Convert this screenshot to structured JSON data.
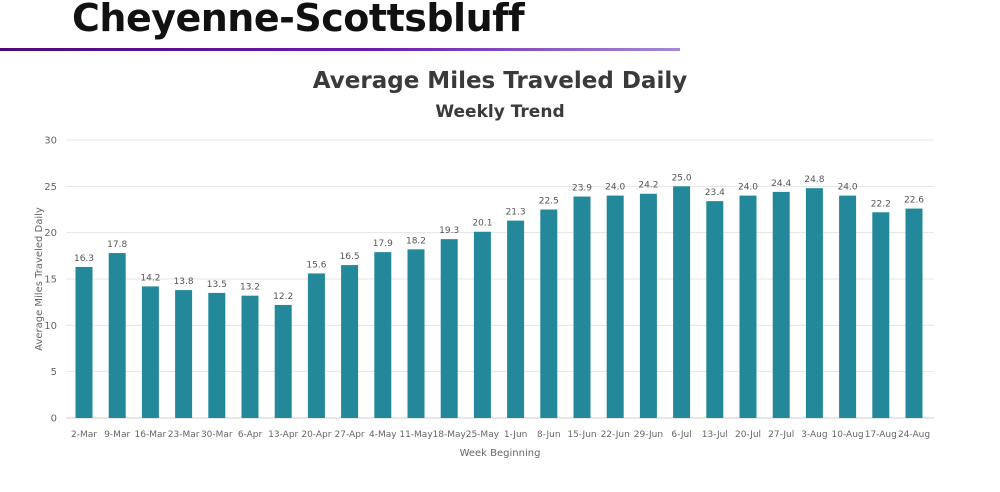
{
  "header": {
    "title": "Cheyenne-Scottsbluff"
  },
  "colors": {
    "bar": "#22889a",
    "grid": "#e4e4e4",
    "axis_text": "#666666",
    "label_text": "#555555",
    "header_rule": "#5a13a0"
  },
  "chart_data": {
    "type": "bar",
    "title": "Average Miles Traveled Daily",
    "subtitle": "Weekly Trend",
    "xlabel": "Week Beginning",
    "ylabel": "Average Miles Traveled Daily",
    "ylim": [
      0,
      30
    ],
    "yticks": [
      0,
      5,
      10,
      15,
      20,
      25,
      30
    ],
    "grid": true,
    "categories": [
      "2-Mar",
      "9-Mar",
      "16-Mar",
      "23-Mar",
      "30-Mar",
      "6-Apr",
      "13-Apr",
      "20-Apr",
      "27-Apr",
      "4-May",
      "11-May",
      "18-May",
      "25-May",
      "1-Jun",
      "8-Jun",
      "15-Jun",
      "22-Jun",
      "29-Jun",
      "6-Jul",
      "13-Jul",
      "20-Jul",
      "27-Jul",
      "3-Aug",
      "10-Aug",
      "17-Aug",
      "24-Aug"
    ],
    "values": [
      16.3,
      17.8,
      14.2,
      13.8,
      13.5,
      13.2,
      12.2,
      15.6,
      16.5,
      17.9,
      18.2,
      19.3,
      20.1,
      21.3,
      22.5,
      23.9,
      24.0,
      24.2,
      25.0,
      23.4,
      24.0,
      24.4,
      24.8,
      24.0,
      22.2,
      22.6
    ]
  }
}
